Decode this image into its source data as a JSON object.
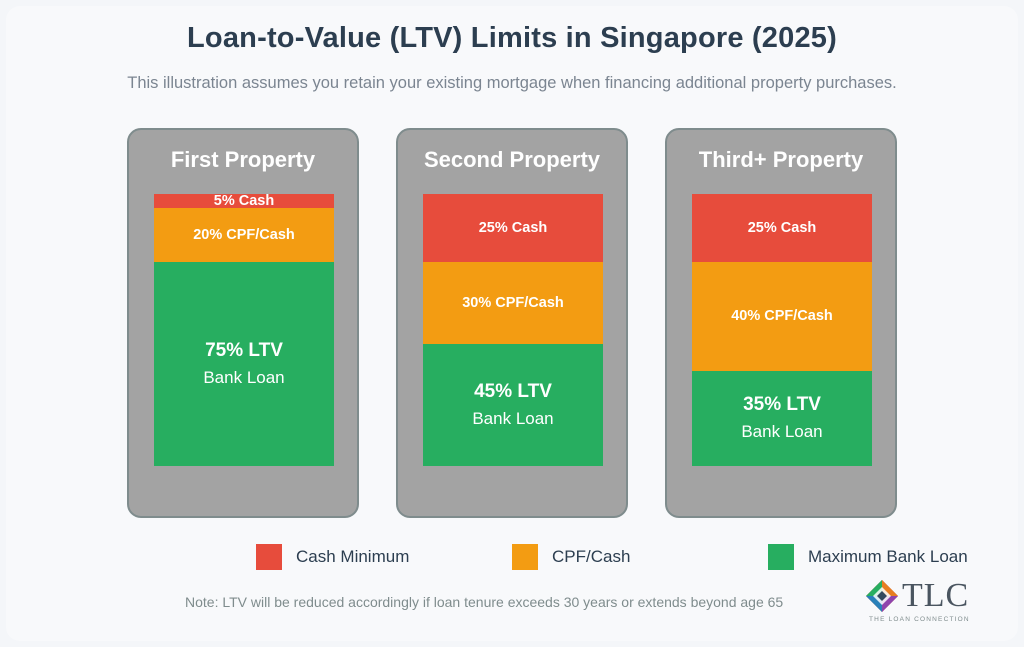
{
  "title": "Loan-to-Value (LTV) Limits in Singapore (2025)",
  "subtitle": "This illustration assumes you retain your existing mortgage when financing additional property purchases.",
  "colors": {
    "cash": "#e74c3c",
    "cpf": "#f39c12",
    "loan": "#27ae60"
  },
  "chart_data": {
    "type": "bar",
    "stacked": true,
    "orientation": "vertical",
    "categories": [
      "First Property",
      "Second Property",
      "Third+ Property"
    ],
    "series": [
      {
        "name": "Cash Minimum",
        "key": "cash",
        "values": [
          5,
          25,
          25
        ],
        "labels": [
          "5% Cash",
          "25% Cash",
          "25% Cash"
        ]
      },
      {
        "name": "CPF/Cash",
        "key": "cpf",
        "values": [
          20,
          30,
          40
        ],
        "labels": [
          "20% CPF/Cash",
          "30% CPF/Cash",
          "40% CPF/Cash"
        ]
      },
      {
        "name": "Maximum Bank Loan",
        "key": "loan",
        "values": [
          75,
          45,
          35
        ],
        "labels": [
          "75% LTV",
          "45% LTV",
          "35% LTV"
        ],
        "sublabel": "Bank Loan"
      }
    ],
    "ylim": [
      0,
      100
    ],
    "legend": "bottom",
    "grid": false
  },
  "legend": [
    {
      "label": "Cash Minimum",
      "color": "#e74c3c"
    },
    {
      "label": "CPF/Cash",
      "color": "#f39c12"
    },
    {
      "label": "Maximum Bank Loan",
      "color": "#27ae60"
    }
  ],
  "note": "Note: LTV will be reduced accordingly if loan tenure exceeds 30 years or extends beyond age 65",
  "logo": {
    "text": "TLC",
    "subtext": "THE LOAN CONNECTION"
  }
}
